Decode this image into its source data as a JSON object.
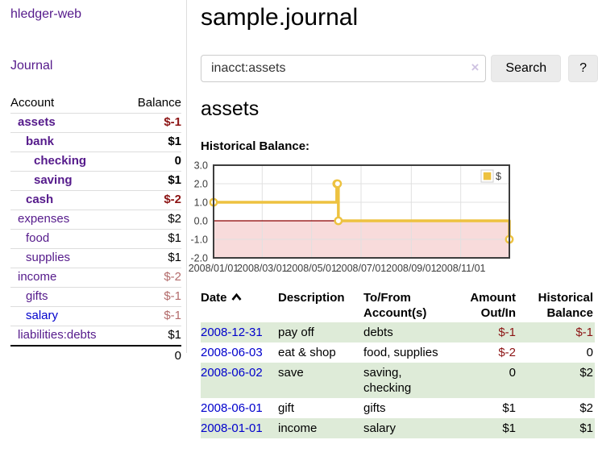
{
  "sidebar": {
    "brand": "hledger-web",
    "nav": {
      "journal": "Journal"
    },
    "accounts_table": {
      "headers": {
        "account": "Account",
        "balance": "Balance"
      },
      "rows": [
        {
          "account": "assets",
          "balance": "$-1"
        },
        {
          "account": "bank",
          "balance": "$1"
        },
        {
          "account": "checking",
          "balance": "0"
        },
        {
          "account": "saving",
          "balance": "$1"
        },
        {
          "account": "cash",
          "balance": "$-2"
        },
        {
          "account": "expenses",
          "balance": "$2"
        },
        {
          "account": "food",
          "balance": "$1"
        },
        {
          "account": "supplies",
          "balance": "$1"
        },
        {
          "account": "income",
          "balance": "$-2"
        },
        {
          "account": "gifts",
          "balance": "$-1"
        },
        {
          "account": "salary",
          "balance": "$-1"
        },
        {
          "account": "liabilities:debts",
          "balance": "$1"
        }
      ],
      "total": "0"
    }
  },
  "main": {
    "title": "sample.journal",
    "search": {
      "value": "inacct:assets",
      "button": "Search",
      "help": "?"
    },
    "account_heading": "assets",
    "chart_title": "Historical Balance:"
  },
  "icons": {
    "clear_search": "×",
    "sort": "chevron-up"
  },
  "chart_data": {
    "type": "line",
    "title": "Historical Balance:",
    "step": true,
    "series": [
      {
        "name": "$",
        "color": "#edc240",
        "points": [
          {
            "x": "2008-01-01",
            "y": 1
          },
          {
            "x": "2008-06-01",
            "y": 2
          },
          {
            "x": "2008-06-02",
            "y": 2
          },
          {
            "x": "2008-06-03",
            "y": 0
          },
          {
            "x": "2008-12-31",
            "y": -1
          }
        ]
      }
    ],
    "ylim": [
      -2,
      3
    ],
    "yticks": [
      3,
      2,
      1,
      0,
      -1,
      -2
    ],
    "ytick_labels": [
      "3.0",
      "2.0",
      "1.0",
      "0.0",
      "-1.0",
      "-2.0"
    ],
    "xticks": [
      "2008/01/01",
      "2008/03/01",
      "2008/05/01",
      "2008/07/01",
      "2008/09/01",
      "2008/11/01"
    ],
    "legend": {
      "label": "$",
      "position": "top-right"
    },
    "grid": true,
    "negative_region_fill": "#f8dbdb",
    "zero_line_color": "#8b0000"
  },
  "transactions": {
    "headers": [
      "Date",
      "Description",
      "To/From Account(s)",
      "Amount Out/In",
      "Historical Balance"
    ],
    "rows": [
      {
        "date": "2008-12-31",
        "description": "pay off",
        "accounts": "debts",
        "amount": "$-1",
        "balance": "$-1"
      },
      {
        "date": "2008-06-03",
        "description": "eat & shop",
        "accounts": "food, supplies",
        "amount": "$-2",
        "balance": "0"
      },
      {
        "date": "2008-06-02",
        "description": "save",
        "accounts": "saving,\nchecking",
        "amount": "0",
        "balance": "$2"
      },
      {
        "date": "2008-06-01",
        "description": "gift",
        "accounts": "gifts",
        "amount": "$1",
        "balance": "$2"
      },
      {
        "date": "2008-01-01",
        "description": "income",
        "accounts": "salary",
        "amount": "$1",
        "balance": "$1"
      }
    ]
  },
  "colors": {
    "link_purple": "#551a8b",
    "link_blue": "#0000cc",
    "negative_strong": "#8c1414",
    "negative_weak": "#b36b6b",
    "row_stripe_green": "#deebd8",
    "chart_line_gold": "#edc240",
    "chart_negative_fill": "#f8dbdb",
    "chart_zero_line": "#8b0000"
  }
}
